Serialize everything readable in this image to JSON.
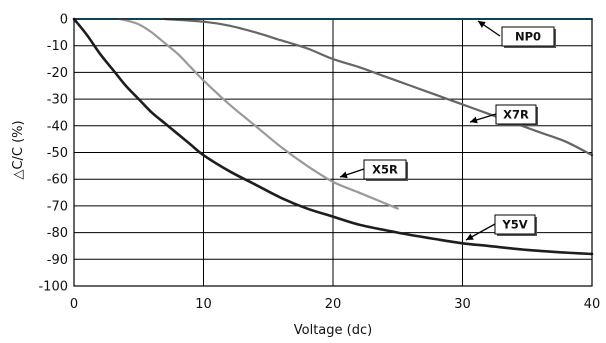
{
  "chart_data": {
    "type": "line",
    "xlabel": "Voltage (dc)",
    "ylabel": "△C/C (%)",
    "xlim": [
      0,
      40
    ],
    "ylim": [
      -100,
      0
    ],
    "x_ticks": [
      0,
      10,
      20,
      30,
      40
    ],
    "y_ticks": [
      0,
      -10,
      -20,
      -30,
      -40,
      -50,
      -60,
      -70,
      -80,
      -90,
      -100
    ],
    "grid": true,
    "legend": "callout labels on curves",
    "series": [
      {
        "name": "NP0",
        "color": "#2f9fd8",
        "x": [
          0,
          40
        ],
        "y": [
          0,
          0
        ]
      },
      {
        "name": "X7R",
        "color": "#666666",
        "x": [
          7,
          10,
          12,
          14,
          16,
          18,
          20,
          22,
          24,
          26,
          28,
          30,
          32,
          34,
          36,
          38,
          40
        ],
        "y": [
          0,
          -1,
          -2.5,
          -5,
          -8,
          -11,
          -15,
          -18,
          -21.5,
          -25,
          -28.5,
          -32,
          -35.5,
          -39,
          -42.5,
          -46,
          -51
        ]
      },
      {
        "name": "X5R",
        "color": "#9a9a9a",
        "x": [
          3.5,
          4,
          5,
          6,
          7,
          8,
          9,
          10,
          12,
          14,
          16,
          18,
          20,
          22,
          24,
          25
        ],
        "y": [
          0,
          -0.5,
          -2,
          -5,
          -9,
          -13,
          -18,
          -23,
          -32,
          -40,
          -48,
          -55,
          -61,
          -65,
          -69,
          -71
        ]
      },
      {
        "name": "Y5V",
        "color": "#1e1e1e",
        "x": [
          0,
          1,
          2,
          3,
          4,
          5,
          6,
          7,
          8,
          9,
          10,
          12,
          14,
          16,
          18,
          20,
          22,
          25,
          28,
          30,
          32,
          35,
          38,
          40
        ],
        "y": [
          0,
          -6,
          -13,
          -19,
          -25,
          -30,
          -35,
          -39,
          -43,
          -47,
          -51,
          -57,
          -62,
          -67,
          -71,
          -74,
          -77,
          -80,
          -82.5,
          -84,
          -85,
          -86.5,
          -87.5,
          -88
        ]
      }
    ],
    "annotations": [
      {
        "text": "NP0",
        "series": "NP0"
      },
      {
        "text": "X7R",
        "series": "X7R"
      },
      {
        "text": "X5R",
        "series": "X5R"
      },
      {
        "text": "Y5V",
        "series": "Y5V"
      }
    ]
  }
}
